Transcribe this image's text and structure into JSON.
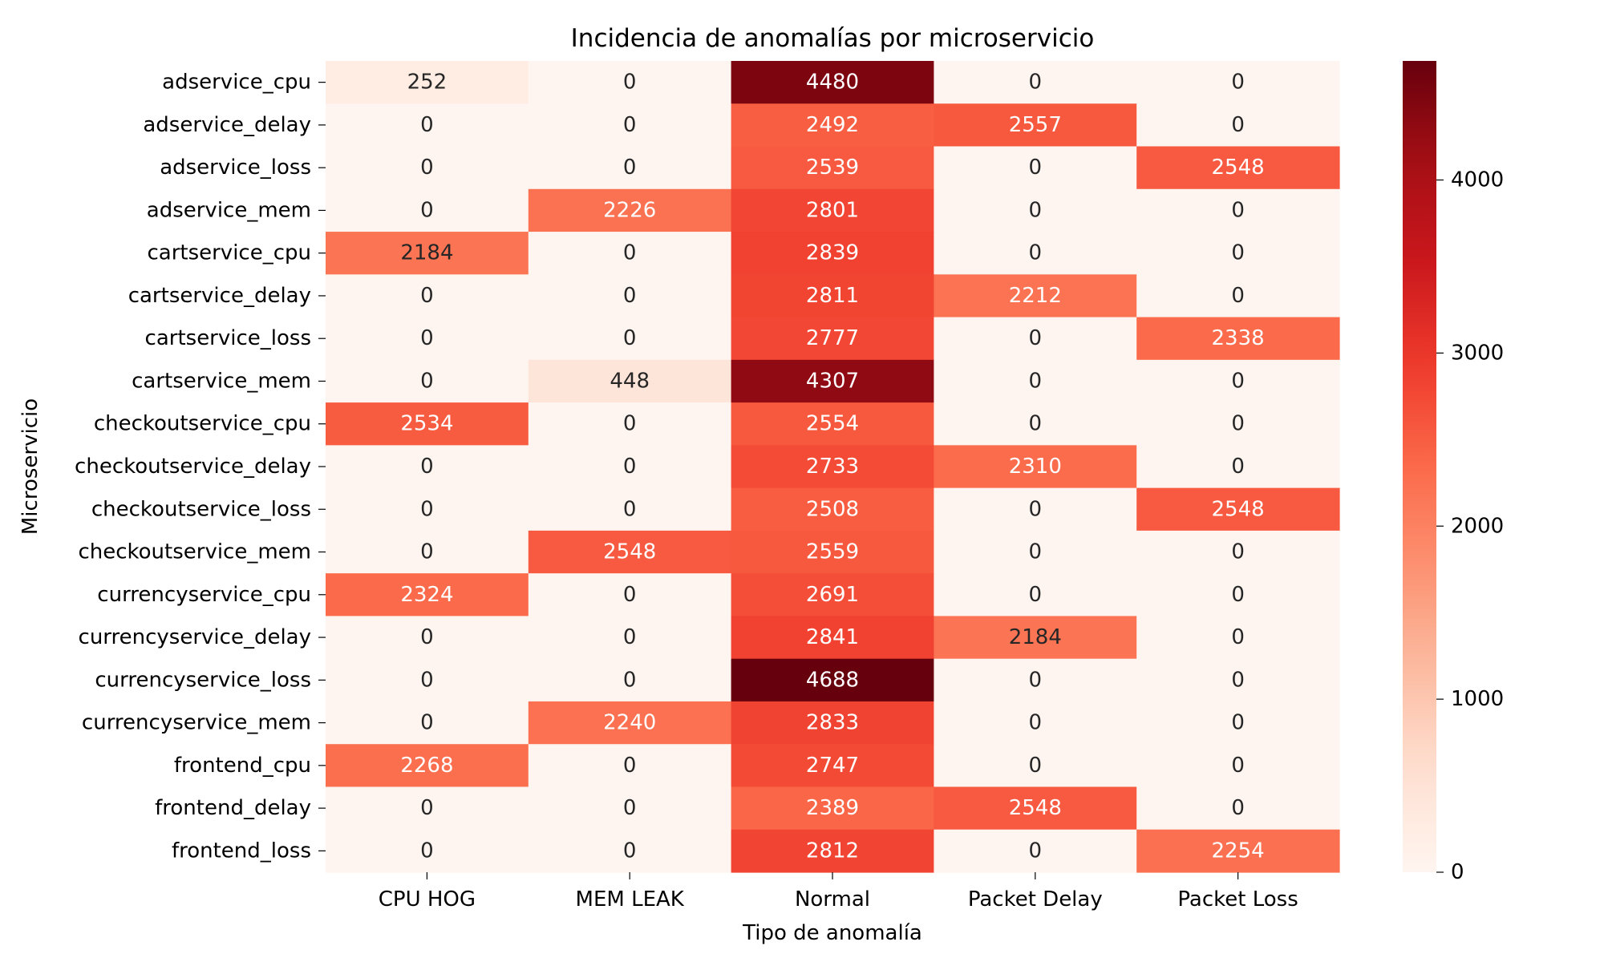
{
  "chart_data": {
    "type": "heatmap",
    "title": "Incidencia de anomalías por microservicio",
    "xlabel": "Tipo de anomalía",
    "ylabel": "Microservicio",
    "x_categories": [
      "CPU HOG",
      "MEM LEAK",
      "Normal",
      "Packet Delay",
      "Packet Loss"
    ],
    "y_categories": [
      "adservice_cpu",
      "adservice_delay",
      "adservice_loss",
      "adservice_mem",
      "cartservice_cpu",
      "cartservice_delay",
      "cartservice_loss",
      "cartservice_mem",
      "checkoutservice_cpu",
      "checkoutservice_delay",
      "checkoutservice_loss",
      "checkoutservice_mem",
      "currencyservice_cpu",
      "currencyservice_delay",
      "currencyservice_loss",
      "currencyservice_mem",
      "frontend_cpu",
      "frontend_delay",
      "frontend_loss"
    ],
    "values": [
      [
        252,
        0,
        4480,
        0,
        0
      ],
      [
        0,
        0,
        2492,
        2557,
        0
      ],
      [
        0,
        0,
        2539,
        0,
        2548
      ],
      [
        0,
        2226,
        2801,
        0,
        0
      ],
      [
        2184,
        0,
        2839,
        0,
        0
      ],
      [
        0,
        0,
        2811,
        2212,
        0
      ],
      [
        0,
        0,
        2777,
        0,
        2338
      ],
      [
        0,
        448,
        4307,
        0,
        0
      ],
      [
        2534,
        0,
        2554,
        0,
        0
      ],
      [
        0,
        0,
        2733,
        2310,
        0
      ],
      [
        0,
        0,
        2508,
        0,
        2548
      ],
      [
        0,
        2548,
        2559,
        0,
        0
      ],
      [
        2324,
        0,
        2691,
        0,
        0
      ],
      [
        0,
        0,
        2841,
        2184,
        0
      ],
      [
        0,
        0,
        4688,
        0,
        0
      ],
      [
        0,
        2240,
        2833,
        0,
        0
      ],
      [
        2268,
        0,
        2747,
        0,
        0
      ],
      [
        0,
        0,
        2389,
        2548,
        0
      ],
      [
        0,
        0,
        2812,
        0,
        2254
      ]
    ],
    "colormap": "Reds",
    "color_range": [
      0,
      4688
    ],
    "colorbar_ticks": [
      0,
      1000,
      2000,
      3000,
      4000
    ],
    "annotations": true
  }
}
